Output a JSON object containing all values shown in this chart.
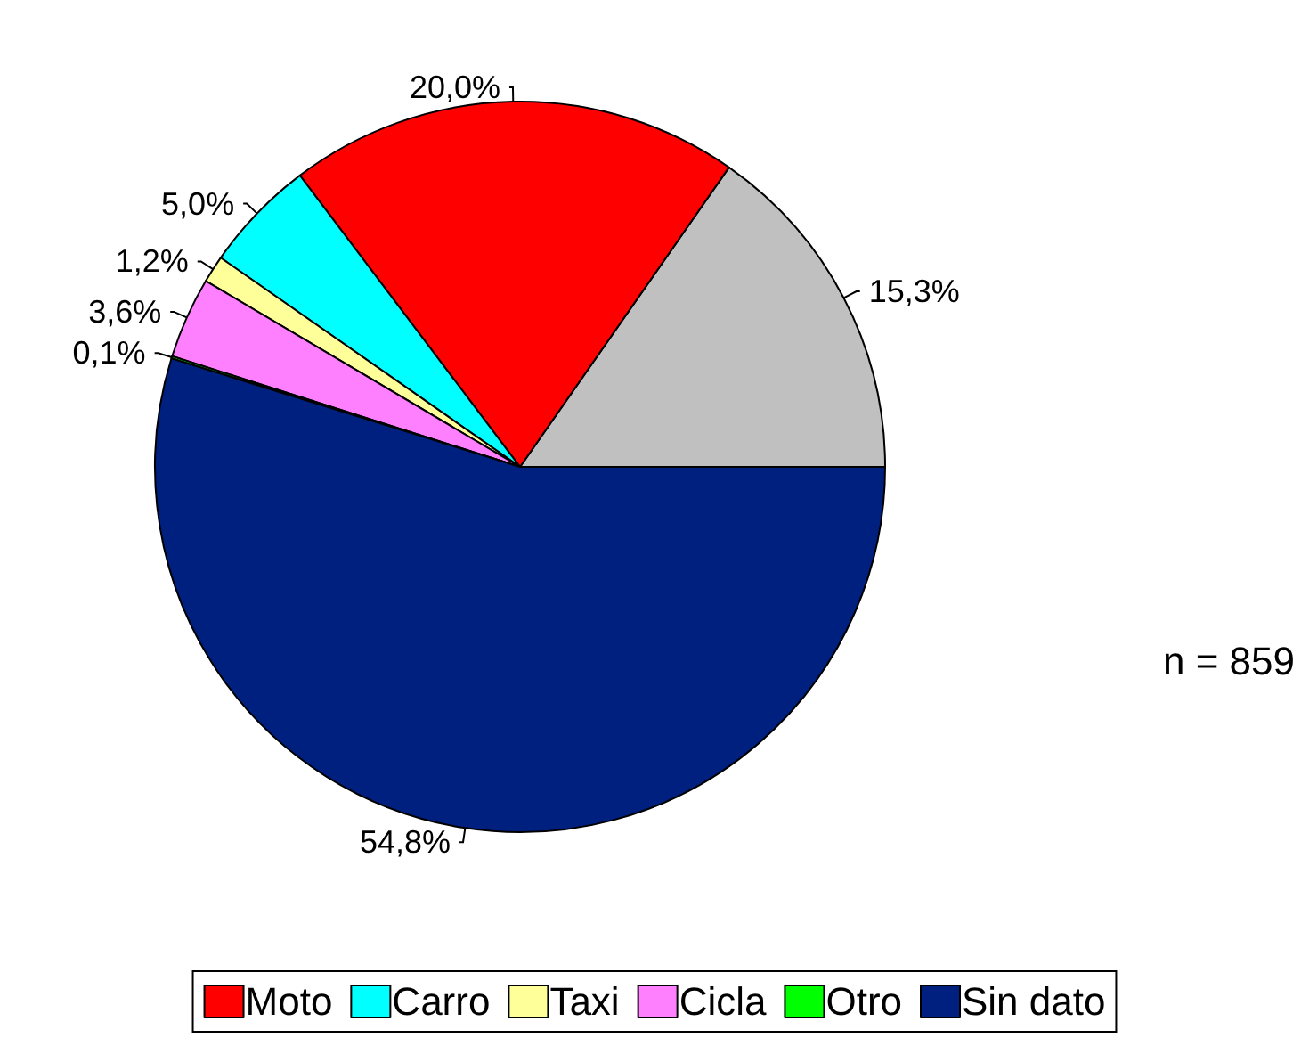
{
  "chart_data": {
    "type": "pie",
    "categories": [
      null,
      "Moto",
      "Carro",
      "Taxi",
      "Cicla",
      "Otro",
      "Sin dato"
    ],
    "values": [
      15.3,
      20.0,
      5.0,
      1.2,
      3.6,
      0.1,
      54.8
    ],
    "colors": [
      "#c0c0c0",
      "#ff0000",
      "#00ffff",
      "#ffff99",
      "#ff80ff",
      "#00ff00",
      "#002080"
    ],
    "value_labels": [
      "15,3%",
      "20,0%",
      "5,0%",
      "1,2%",
      "3,6%",
      "0,1%",
      "54,8%"
    ],
    "legend": "bottom",
    "annotations": [
      "n = 859"
    ]
  }
}
